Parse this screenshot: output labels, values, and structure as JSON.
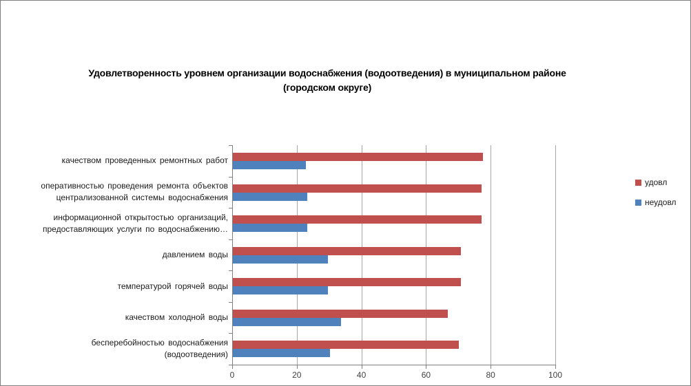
{
  "chart_data": {
    "type": "bar",
    "orientation": "horizontal",
    "title": "Удовлетворенность уровнем организации водоснабжения (водоотведения) в муниципальном районе (городском округе)",
    "title_lines": [
      "Удовлетворенность уровнем организации водоснабжения (водоотведения) в муниципальном районе",
      "(городском округе)"
    ],
    "categories": [
      "качеством проведенных ремонтных работ",
      "оперативностью проведения ремонта объектов централизованной системы водоснабжения",
      "информационной открытостью организаций, предоставляющих услуги по водоснабжению…",
      "давлением воды",
      "температурой горячей воды",
      "качеством холодной воды",
      "бесперебойностью водоснабжения (водоотведения)"
    ],
    "category_lines": [
      [
        "качеством проведенных ремонтных работ"
      ],
      [
        "оперативностью проведения ремонта объектов",
        "централизованной системы водоснабжения"
      ],
      [
        "информационной открытостью организаций,",
        "предоставляющих услуги по водоснабжению…"
      ],
      [
        "давлением воды"
      ],
      [
        "температурой горячей воды"
      ],
      [
        "качеством холодной воды"
      ],
      [
        "бесперебойностью водоснабжения",
        "(водоотведения)"
      ]
    ],
    "series": [
      {
        "name": "удовл",
        "color": "#C0504D",
        "values": [
          77.5,
          77,
          77,
          70.5,
          70.5,
          66.5,
          70
        ]
      },
      {
        "name": "неудовл",
        "color": "#4F81BD",
        "values": [
          22.5,
          23,
          23,
          29.5,
          29.5,
          33.5,
          30
        ]
      }
    ],
    "x_ticks": [
      0,
      20,
      40,
      60,
      80,
      100
    ],
    "xlim": [
      0,
      100
    ],
    "grid": "vertical",
    "legend_position": "right",
    "axis_color": "#808080",
    "gridline_color": "#a6a6a6"
  }
}
